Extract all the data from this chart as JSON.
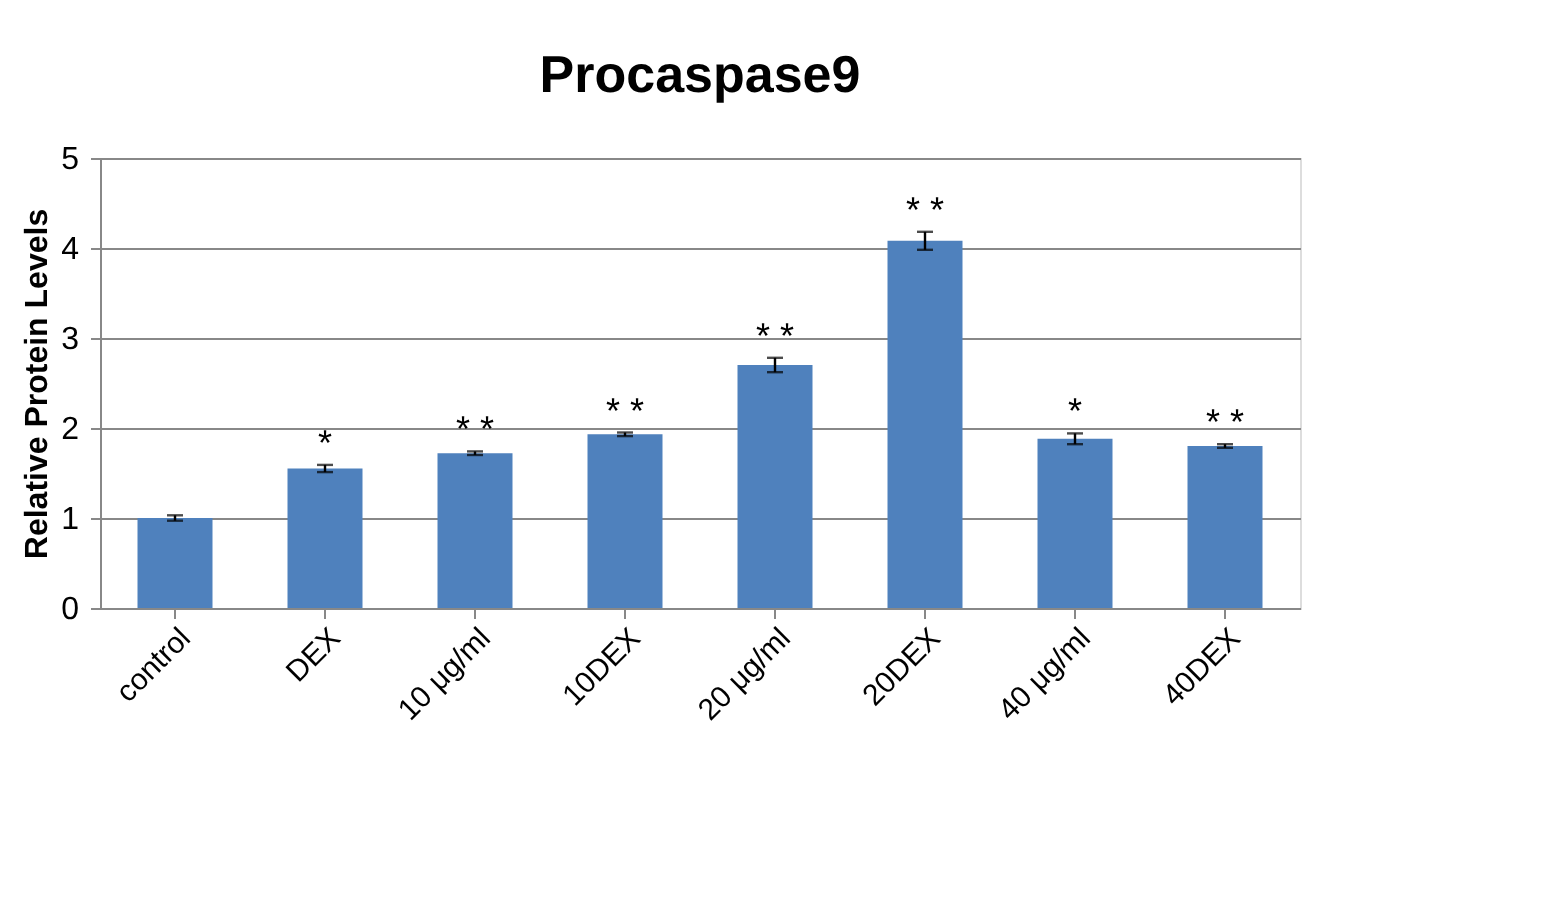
{
  "chart_data": {
    "type": "bar",
    "title": "Procaspase9",
    "ylabel": "Relative Protein Levels",
    "categories": [
      "control",
      "DEX",
      "10 μg/ml",
      "10DEX",
      "20 μg/ml",
      "20DEX",
      "40 μg/ml",
      "40DEX"
    ],
    "values": [
      1.0,
      1.55,
      1.72,
      1.93,
      2.7,
      4.08,
      1.88,
      1.8
    ],
    "errors": [
      0.03,
      0.04,
      0.02,
      0.02,
      0.08,
      0.1,
      0.06,
      0.02
    ],
    "color": "#4f81bd",
    "ylim": [
      0,
      5
    ],
    "yticks": [
      0,
      1,
      2,
      3,
      4,
      5
    ],
    "grid": "y",
    "annotations": [
      {
        "text": "*",
        "x": "DEX",
        "y": 1.59
      },
      {
        "text": "* *",
        "x": "10 μg/ml",
        "y": 1.74
      },
      {
        "text": "* *",
        "x": "10DEX",
        "y": 1.95
      },
      {
        "text": "* *",
        "x": "20 μg/ml",
        "y": 2.78
      },
      {
        "text": "* *",
        "x": "20DEX",
        "y": 4.18
      },
      {
        "text": "*",
        "x": "40 μg/ml",
        "y": 1.94
      },
      {
        "text": "* *",
        "x": "40DEX",
        "y": 1.82
      }
    ]
  }
}
